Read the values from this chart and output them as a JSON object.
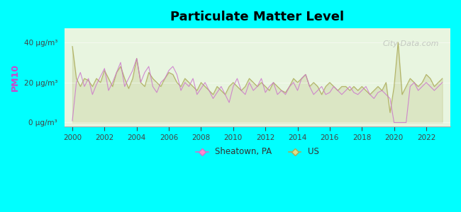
{
  "title": "Particulate Matter Level",
  "ylabel": "PM10",
  "ylabel_color": "#cc44cc",
  "background_color": "#00ffff",
  "plot_bg_color": "#e8f5e0",
  "ytick_labels": [
    "0 μg/m³",
    "20 μg/m³",
    "40 μg/m³"
  ],
  "ytick_values": [
    0,
    20,
    40
  ],
  "ylim": [
    -2,
    47
  ],
  "xlim": [
    1999.5,
    2023.5
  ],
  "xticks": [
    2000,
    2002,
    2004,
    2006,
    2008,
    2010,
    2012,
    2014,
    2016,
    2018,
    2020,
    2022
  ],
  "sheatown_color": "#cc77cc",
  "us_color": "#aaaa55",
  "legend_sheatown": "Sheatown, PA",
  "legend_us": "US",
  "watermark": "City-Data.com",
  "sheatown_x": [
    2000.0,
    2000.25,
    2000.5,
    2000.75,
    2001.0,
    2001.25,
    2001.5,
    2001.75,
    2002.0,
    2002.25,
    2002.5,
    2002.75,
    2003.0,
    2003.25,
    2003.5,
    2003.75,
    2004.0,
    2004.25,
    2004.5,
    2004.75,
    2005.0,
    2005.25,
    2005.5,
    2005.75,
    2006.0,
    2006.25,
    2006.5,
    2006.75,
    2007.0,
    2007.25,
    2007.5,
    2007.75,
    2008.0,
    2008.25,
    2008.5,
    2008.75,
    2009.0,
    2009.25,
    2009.5,
    2009.75,
    2010.0,
    2010.25,
    2010.5,
    2010.75,
    2011.0,
    2011.25,
    2011.5,
    2011.75,
    2012.0,
    2012.25,
    2012.5,
    2012.75,
    2013.0,
    2013.25,
    2013.5,
    2013.75,
    2014.0,
    2014.25,
    2014.5,
    2014.75,
    2015.0,
    2015.25,
    2015.5,
    2015.75,
    2016.0,
    2016.25,
    2016.5,
    2016.75,
    2017.0,
    2017.25,
    2017.5,
    2017.75,
    2018.0,
    2018.25,
    2018.5,
    2018.75,
    2019.0,
    2019.25,
    2019.5,
    2019.75,
    2020.0,
    2020.25,
    2020.5,
    2020.75,
    2021.0,
    2021.25,
    2021.5,
    2021.75,
    2022.0,
    2022.25,
    2022.5,
    2022.75,
    2023.0
  ],
  "sheatown_y": [
    1,
    20,
    25,
    18,
    22,
    14,
    19,
    23,
    27,
    16,
    20,
    25,
    30,
    18,
    22,
    26,
    32,
    20,
    25,
    28,
    18,
    15,
    20,
    22,
    26,
    28,
    24,
    16,
    20,
    18,
    22,
    14,
    17,
    20,
    16,
    12,
    15,
    18,
    14,
    10,
    18,
    22,
    16,
    14,
    20,
    16,
    18,
    22,
    15,
    18,
    20,
    14,
    16,
    14,
    18,
    20,
    16,
    22,
    24,
    18,
    14,
    16,
    18,
    14,
    15,
    18,
    16,
    14,
    16,
    18,
    15,
    14,
    16,
    18,
    14,
    12,
    15,
    16,
    14,
    12,
    0,
    0,
    0,
    0,
    18,
    20,
    16,
    18,
    20,
    18,
    16,
    18,
    20
  ],
  "us_x": [
    2000.0,
    2000.25,
    2000.5,
    2000.75,
    2001.0,
    2001.25,
    2001.5,
    2001.75,
    2002.0,
    2002.25,
    2002.5,
    2002.75,
    2003.0,
    2003.25,
    2003.5,
    2003.75,
    2004.0,
    2004.25,
    2004.5,
    2004.75,
    2005.0,
    2005.25,
    2005.5,
    2005.75,
    2006.0,
    2006.25,
    2006.5,
    2006.75,
    2007.0,
    2007.25,
    2007.5,
    2007.75,
    2008.0,
    2008.25,
    2008.5,
    2008.75,
    2009.0,
    2009.25,
    2009.5,
    2009.75,
    2010.0,
    2010.25,
    2010.5,
    2010.75,
    2011.0,
    2011.25,
    2011.5,
    2011.75,
    2012.0,
    2012.25,
    2012.5,
    2012.75,
    2013.0,
    2013.25,
    2013.5,
    2013.75,
    2014.0,
    2014.25,
    2014.5,
    2014.75,
    2015.0,
    2015.25,
    2015.5,
    2015.75,
    2016.0,
    2016.25,
    2016.5,
    2016.75,
    2017.0,
    2017.25,
    2017.5,
    2017.75,
    2018.0,
    2018.25,
    2018.5,
    2018.75,
    2019.0,
    2019.25,
    2019.5,
    2019.75,
    2020.0,
    2020.25,
    2020.5,
    2020.75,
    2021.0,
    2021.25,
    2021.5,
    2021.75,
    2022.0,
    2022.25,
    2022.5,
    2022.75,
    2023.0
  ],
  "us_y": [
    38,
    22,
    18,
    22,
    21,
    18,
    22,
    20,
    26,
    22,
    18,
    25,
    28,
    22,
    17,
    22,
    32,
    20,
    18,
    25,
    22,
    20,
    18,
    22,
    25,
    24,
    20,
    18,
    22,
    20,
    18,
    16,
    20,
    18,
    16,
    14,
    18,
    16,
    14,
    18,
    20,
    18,
    16,
    18,
    22,
    20,
    18,
    20,
    18,
    16,
    20,
    18,
    16,
    15,
    18,
    22,
    20,
    22,
    24,
    18,
    20,
    18,
    14,
    18,
    20,
    18,
    16,
    18,
    18,
    16,
    18,
    16,
    18,
    16,
    14,
    16,
    18,
    16,
    20,
    5,
    18,
    40,
    14,
    18,
    22,
    20,
    18,
    20,
    24,
    22,
    18,
    20,
    22
  ]
}
